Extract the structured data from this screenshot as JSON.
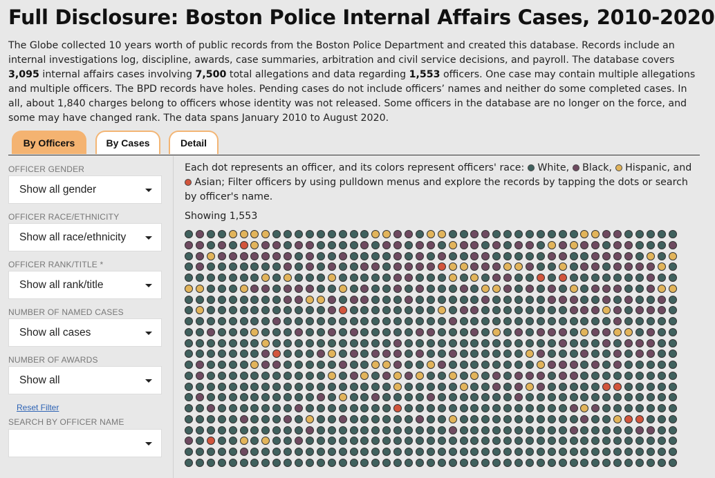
{
  "page": {
    "title": "Full Disclosure: Boston Police Internal Affairs Cases, 2010-2020",
    "intro": {
      "p1": "The Globe collected 10 years worth of public records from the Boston Police Department and created this database. Records include an internal investigations log, discipline, awards, case summaries, arbitration and civil service decisions, and payroll. The database covers ",
      "cases_count": "3,095",
      "p2": " internal affairs cases involving ",
      "allegations_count": "7,500",
      "p3": " total allegations and data regarding ",
      "officers_count": "1,553",
      "p4": " officers. One case may contain multiple allegations and multiple officers. The BPD records have holes. Pending cases do not include officers’ names and neither do some completed cases. In all, about 1,840 charges belong to officers whose identity was not released. Some officers in the database are no longer on the force, and some may have changed rank. The data spans January 2010 to August 2020."
    }
  },
  "tabs": [
    {
      "label": "By Officers",
      "active": true
    },
    {
      "label": "By Cases",
      "active": false
    },
    {
      "label": "Detail",
      "active": false
    }
  ],
  "filters": {
    "gender": {
      "label": "OFFICER GENDER",
      "value": "Show all gender"
    },
    "race": {
      "label": "OFFICER RACE/ETHNICITY",
      "value": "Show all race/ethnicity"
    },
    "rank": {
      "label": "OFFICER RANK/TITLE *",
      "value": "Show all rank/title"
    },
    "cases": {
      "label": "NUMBER OF NAMED CASES",
      "value": "Show all cases"
    },
    "awards": {
      "label": "NUMBER OF AWARDS",
      "value": "Show all"
    },
    "reset_label": "Reset Filter",
    "search": {
      "label": "SEARCH BY OFFICER NAME",
      "value": ""
    }
  },
  "legend": {
    "pre": "Each dot represents an officer, and its colors represent officers' race: ",
    "white": "White,",
    "black": "Black,",
    "hispanic": "Hispanic,",
    "and": "and",
    "asian": "Asian;",
    "post": "Filter officers by using pulldown menus and explore the records by tapping the dots or search by officer's name."
  },
  "showing": "Showing 1,553",
  "colors": {
    "white": "#40615e",
    "black": "#6e4a60",
    "hispanic": "#e2b45b",
    "asian": "#d2553c",
    "tab_accent": "#f4b371"
  },
  "dot_rows": [
    "WBWWHHHHWWWWWWWWWHHBBWHHWWBBWWWWWWWWHHBBWWWWW",
    "BBWBWAHBBWBBWWWWBWBBWBBWHBBWBWBBWHBHBBWBBWWWB",
    "WBHBBBBBBBWBWWBWWWWBWBWBWWBBWWWWWBBWWBBBBWHWH",
    "WBWWWWWWWBWBWBWWBBWBBBBAHHBBBHHBWWHWBBWBBBBHW",
    "WWWWWWWHWHWWWHWWWWWBBWWWHWHWBBWWAWAWWWWWWWBWW",
    "HHWWWHBBWBBBWWHWBWWBWBWWWBWHHBWBWBWHWBBBWWBHH",
    "WWWWWWWWWBBHHBWBBWWWBWWWWWWBWWWWWBBBWWBWBWWBW",
    "WHWWWWWWWWWWWBAWWWWWWWWHWBBWWWWWWWWBBBHBWBBBW",
    "WWWWWWWWBWWWWWWWWWWWWWWWBWWWWWWWWWWWWWWBWWWWW",
    "WWBWWWHWWWBWWBWBWWWWWBBWWWBWHWBWBBBWHBBHHWBWW",
    "WWWWWWWHWWWWWWWWWWWBWWWWWWWWWWWWWWBWWWBWBBBWW",
    "WWWWWWWBAWWWBHWBWBBBWBWWBWWWWWWHBWWWBWWBWBBWW",
    "WBWWWWHBBWWWWWBWWHHBWWHBWWWWWWWWHBBBWBWBWWWWW",
    "WBWWWWWWWWWWWHWBHWBHBHWWHWHWBWBBBWBBWWWWWWWWW",
    "WWWWWWWWWWWWWWWWWWWHWWWWWHWWBWBHBWWWWWAAWWWWW",
    "WBWWWWWWWWWWBWHWWBWWWWBWWWWWWWBWWWWWWWWWWWWWW",
    "WWBWWWWWWWBWWWWWWWWAWWWWWWWWWWWWWWWBHBWWWWWWW",
    "WWWWWBWWWBWHWWBWWWWWWBWWHWWWWWWWWWWWBWWHAAWWW",
    "WWWWWWWWWWWBWWWWWWWWWWWWBWWWWWWWWWWBWWWWWBBWW",
    "BWAWWHWHWWBWWWWWWWWWWWWWWWWWWWWWWWWWWWWWWWWWW",
    "WWWWWBWWWWWWWWWWWWWWWWWWWWWWWWWWWWWWWWWWWWWWW",
    "WWWWWWWWWWWWWWWWWWWWWWWWWWWWWWWWWWWWWWWWWWWWW"
  ]
}
